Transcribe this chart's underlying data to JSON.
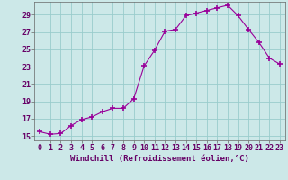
{
  "x": [
    0,
    1,
    2,
    3,
    4,
    5,
    6,
    7,
    8,
    9,
    10,
    11,
    12,
    13,
    14,
    15,
    16,
    17,
    18,
    19,
    20,
    21,
    22,
    23
  ],
  "y": [
    15.5,
    15.2,
    15.3,
    16.2,
    16.9,
    17.2,
    17.8,
    18.2,
    18.2,
    19.3,
    23.1,
    24.9,
    27.1,
    27.3,
    28.9,
    29.2,
    29.5,
    29.8,
    30.1,
    28.9,
    27.3,
    25.8,
    24.0,
    23.3
  ],
  "line_color": "#990099",
  "marker": "+",
  "marker_color": "#990099",
  "bg_color": "#cce8e8",
  "grid_color": "#99cccc",
  "xlabel": "Windchill (Refroidissement éolien,°C)",
  "xlabel_fontsize": 6.5,
  "tick_fontsize": 6.0,
  "xlim": [
    -0.5,
    23.5
  ],
  "ylim": [
    14.5,
    30.5
  ],
  "yticks": [
    15,
    17,
    19,
    21,
    23,
    25,
    27,
    29
  ],
  "xticks": [
    0,
    1,
    2,
    3,
    4,
    5,
    6,
    7,
    8,
    9,
    10,
    11,
    12,
    13,
    14,
    15,
    16,
    17,
    18,
    19,
    20,
    21,
    22,
    23
  ]
}
